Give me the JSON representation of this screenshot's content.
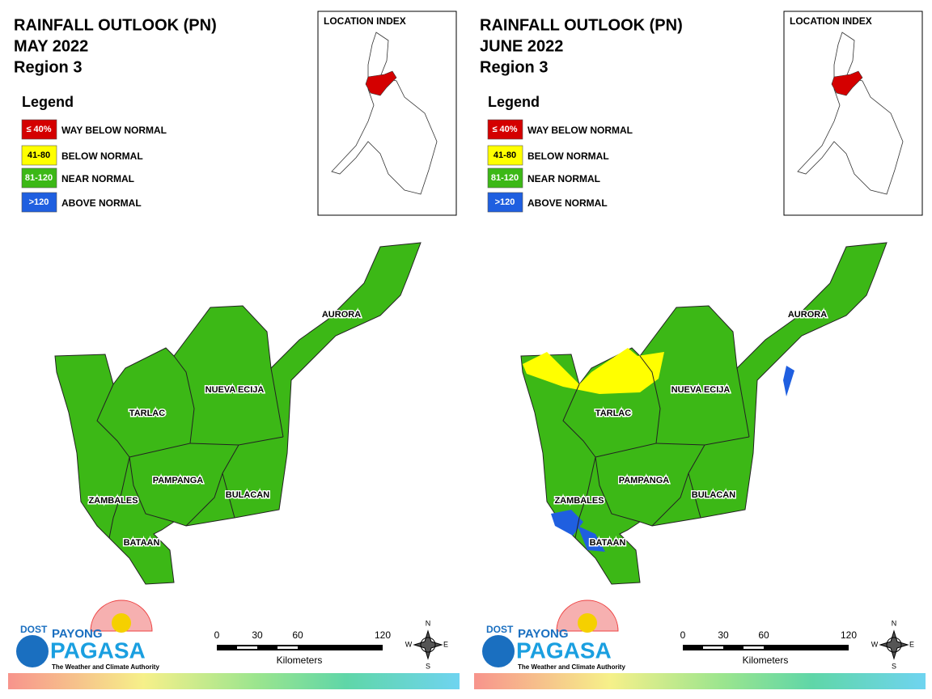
{
  "panels": [
    {
      "title": [
        "RAINFALL OUTLOOK (PN)",
        "MAY 2022",
        "Region 3"
      ],
      "legend": {
        "title": "Legend",
        "items": [
          {
            "range": "≤ 40%",
            "label": "WAY BELOW NORMAL",
            "color": "#d40000"
          },
          {
            "range": "41-80",
            "label": "BELOW NORMAL",
            "color": "#ffff00"
          },
          {
            "range": "81-120",
            "label": "NEAR NORMAL",
            "color": "#3cb816"
          },
          {
            "range": ">120",
            "label": "ABOVE NORMAL",
            "color": "#1f5fe0"
          }
        ]
      },
      "location_index": "LOCATION INDEX",
      "provinces": [
        "AURORA",
        "NUEVA ECIJA",
        "TARLAC",
        "PAMPANGA",
        "ZAMBALES",
        "BULACAN",
        "BATAAN"
      ],
      "scale": {
        "ticks": [
          "0",
          "30",
          "60",
          "120"
        ],
        "unit": "Kilometers"
      },
      "logo": {
        "agency": "DOST",
        "top": "PAYONG",
        "name": "PAGASA",
        "tagline": "The Weather and Climate Authority"
      },
      "compass": [
        "N",
        "E",
        "S",
        "W"
      ]
    },
    {
      "title": [
        "RAINFALL OUTLOOK (PN)",
        "JUNE 2022",
        "Region 3"
      ],
      "legend": {
        "title": "Legend",
        "items": [
          {
            "range": "≤ 40%",
            "label": "WAY BELOW NORMAL",
            "color": "#d40000"
          },
          {
            "range": "41-80",
            "label": "BELOW NORMAL",
            "color": "#ffff00"
          },
          {
            "range": "81-120",
            "label": "NEAR NORMAL",
            "color": "#3cb816"
          },
          {
            "range": ">120",
            "label": "ABOVE NORMAL",
            "color": "#1f5fe0"
          }
        ]
      },
      "location_index": "LOCATION INDEX",
      "provinces": [
        "AURORA",
        "NUEVA ECIJA",
        "TARLAC",
        "PAMPANGA",
        "ZAMBALES",
        "BULACAN",
        "BATAAN"
      ],
      "scale": {
        "ticks": [
          "0",
          "30",
          "60",
          "120"
        ],
        "unit": "Kilometers"
      },
      "logo": {
        "agency": "DOST",
        "top": "PAYONG",
        "name": "PAGASA",
        "tagline": "The Weather and Climate Authority"
      },
      "compass": [
        "N",
        "E",
        "S",
        "W"
      ]
    }
  ]
}
